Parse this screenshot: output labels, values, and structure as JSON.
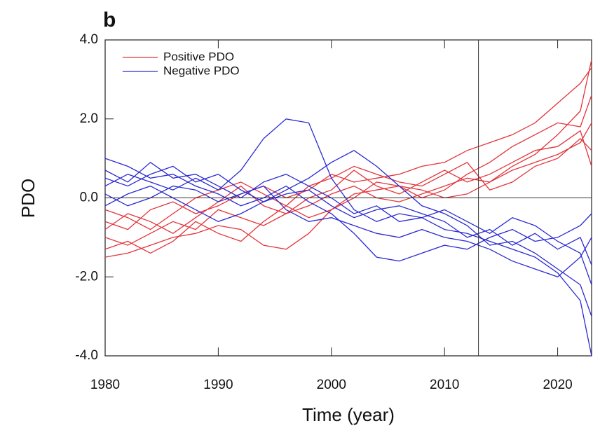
{
  "chart_data": {
    "type": "line",
    "panel_label": "b",
    "xlabel": "Time (year)",
    "ylabel": "PDO",
    "x": [
      1980,
      1982,
      1984,
      1986,
      1988,
      1990,
      1992,
      1994,
      1996,
      1998,
      2000,
      2002,
      2004,
      2006,
      2008,
      2010,
      2012,
      2014,
      2016,
      2018,
      2020,
      2022,
      2023
    ],
    "xlim": [
      1980,
      2023
    ],
    "xticks": [
      1980,
      1990,
      2000,
      2010,
      2020
    ],
    "ylim": [
      -4,
      4
    ],
    "yticks": [
      {
        "value": -4,
        "label": "-4.0"
      },
      {
        "value": -2,
        "label": "-2.0"
      },
      {
        "value": 0,
        "label": "0.0"
      },
      {
        "value": 2,
        "label": "2.0"
      },
      {
        "value": 4,
        "label": "4.0"
      }
    ],
    "vline": 2013,
    "hline": 0,
    "legend": "upper left",
    "series": [
      {
        "name": "Positive PDO",
        "color": "#e3343a",
        "lines": [
          [
            -1.5,
            -1.4,
            -1.2,
            -1.0,
            -0.9,
            -0.7,
            -0.8,
            -1.2,
            -1.3,
            -0.9,
            -0.3,
            0.1,
            0.2,
            0.3,
            0.2,
            0.0,
            0.1,
            0.4,
            0.8,
            1.1,
            1.6,
            2.2,
            3.5
          ],
          [
            -0.6,
            -0.8,
            -0.3,
            -0.1,
            -0.4,
            -0.2,
            0.1,
            0.3,
            0.0,
            0.2,
            0.6,
            0.4,
            0.5,
            0.6,
            0.8,
            0.9,
            1.2,
            1.4,
            1.6,
            1.9,
            2.4,
            2.9,
            3.3
          ],
          [
            -1.0,
            -1.2,
            -0.9,
            -0.6,
            -0.8,
            -0.3,
            -0.5,
            -0.7,
            -0.4,
            -0.2,
            0.1,
            0.3,
            0.0,
            -0.1,
            0.1,
            0.3,
            0.5,
            0.4,
            0.7,
            0.9,
            1.1,
            1.4,
            1.9
          ],
          [
            -0.3,
            -0.5,
            -0.8,
            -0.4,
            0.0,
            0.2,
            0.4,
            0.1,
            -0.2,
            0.3,
            0.5,
            0.8,
            0.6,
            0.4,
            0.3,
            0.6,
            0.9,
            0.2,
            0.4,
            0.8,
            1.0,
            1.5,
            1.2
          ],
          [
            -1.3,
            -1.1,
            -1.4,
            -1.1,
            -0.6,
            -0.9,
            -1.1,
            -0.6,
            -0.2,
            -0.5,
            -0.3,
            0.0,
            0.4,
            0.3,
            0.0,
            0.2,
            0.6,
            0.9,
            1.3,
            1.6,
            1.9,
            1.8,
            2.6
          ],
          [
            -0.8,
            -0.4,
            -0.6,
            -0.9,
            -0.5,
            -0.1,
            0.3,
            -0.2,
            -0.4,
            0.0,
            0.2,
            0.7,
            0.3,
            0.1,
            0.4,
            0.7,
            0.4,
            0.6,
            0.9,
            1.2,
            1.3,
            1.7,
            0.8
          ]
        ]
      },
      {
        "name": "Negative PDO",
        "color": "#2a2ad4",
        "lines": [
          [
            0.3,
            0.6,
            0.4,
            0.2,
            0.5,
            0.2,
            0.7,
            1.5,
            2.0,
            1.9,
            0.5,
            -0.3,
            -0.6,
            -0.4,
            -0.5,
            -0.8,
            -0.9,
            -1.1,
            -1.3,
            -1.5,
            -1.9,
            -2.6,
            -4.0
          ],
          [
            1.0,
            0.8,
            0.5,
            0.6,
            0.3,
            0.1,
            -0.2,
            0.0,
            0.3,
            -0.1,
            -0.4,
            -0.9,
            -1.5,
            -1.6,
            -1.4,
            -1.2,
            -1.3,
            -1.0,
            -0.8,
            -1.1,
            -1.0,
            -0.7,
            -0.4
          ],
          [
            0.5,
            0.3,
            0.6,
            0.8,
            0.4,
            0.6,
            0.2,
            -0.1,
            0.2,
            0.5,
            0.9,
            1.2,
            0.8,
            0.3,
            -0.2,
            -0.4,
            -0.7,
            -1.2,
            -1.1,
            -1.4,
            -1.8,
            -2.2,
            -3.0
          ],
          [
            -0.2,
            0.1,
            0.3,
            0.0,
            -0.3,
            -0.6,
            -0.4,
            -0.1,
            0.1,
            0.2,
            -0.2,
            -0.5,
            -0.3,
            -0.2,
            -0.4,
            -0.6,
            -1.0,
            -0.8,
            -1.2,
            -0.9,
            -1.3,
            -1.0,
            -1.7
          ],
          [
            0.7,
            0.4,
            0.9,
            0.5,
            0.6,
            0.3,
            0.0,
            0.4,
            0.6,
            0.3,
            0.0,
            -0.4,
            -0.2,
            -0.6,
            -0.5,
            -0.3,
            -0.6,
            -0.9,
            -0.5,
            -0.7,
            -1.1,
            -1.4,
            -2.2
          ],
          [
            0.1,
            -0.2,
            0.0,
            0.3,
            0.2,
            -0.1,
            0.1,
            0.3,
            -0.3,
            -0.6,
            -0.5,
            -0.7,
            -0.9,
            -1.0,
            -0.8,
            -1.0,
            -1.1,
            -1.3,
            -1.6,
            -1.8,
            -2.0,
            -1.5,
            -1.0
          ]
        ]
      }
    ]
  }
}
